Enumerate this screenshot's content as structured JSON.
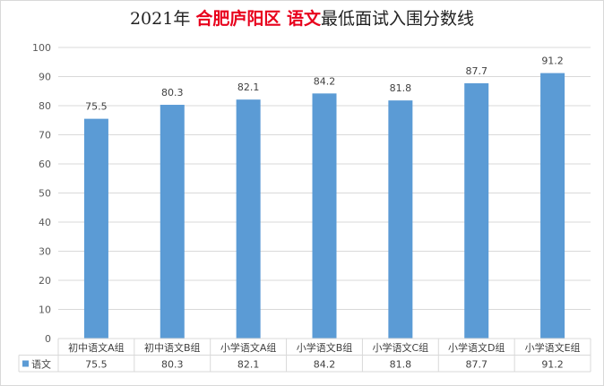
{
  "chart_data": {
    "type": "bar",
    "title_parts": [
      {
        "text": "2021年 ",
        "style": "dark"
      },
      {
        "text": "合肥庐阳区 ",
        "style": "red"
      },
      {
        "text": "语文",
        "style": "red"
      },
      {
        "text": "最低面试入围分数线",
        "style": "dark"
      }
    ],
    "categories": [
      "初中语文A组",
      "初中语文B组",
      "小学语文A组",
      "小学语文B组",
      "小学语文C组",
      "小学语文D组",
      "小学语文E组"
    ],
    "series": [
      {
        "name": "语文",
        "values": [
          75.5,
          80.3,
          82.1,
          84.2,
          81.8,
          87.7,
          91.2
        ],
        "color": "#5b9bd5"
      }
    ],
    "value_labels": [
      "75.5",
      "80.3",
      "82.1",
      "84.2",
      "81.8",
      "87.7",
      "91.2"
    ],
    "ylim": [
      0,
      100
    ],
    "y_ticks": [
      0,
      10,
      20,
      30,
      40,
      50,
      60,
      70,
      80,
      90,
      100
    ],
    "y_tick_labels": [
      "0",
      "10",
      "20",
      "30",
      "40",
      "50",
      "60",
      "70",
      "80",
      "90",
      "100"
    ],
    "grid": true,
    "legend": "data-table",
    "colors": {
      "title_red": "#e8001c",
      "title_dark": "#222222",
      "grid": "#d9d9d9",
      "axis_text": "#595959"
    }
  }
}
